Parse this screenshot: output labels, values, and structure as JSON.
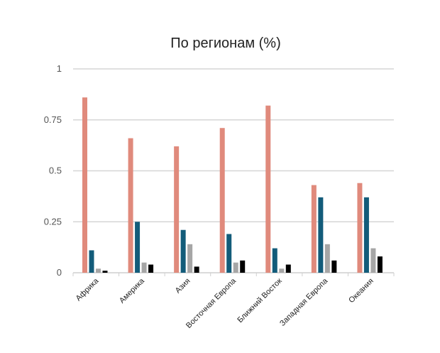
{
  "chart_data": {
    "type": "bar",
    "title": "По регионам (%)",
    "xlabel": "",
    "ylabel": "",
    "ylim": [
      0,
      1
    ],
    "y_ticks": [
      "0",
      "0.25",
      "0.5",
      "0.75",
      "1"
    ],
    "grid": true,
    "legend": "none",
    "categories": [
      "Африка",
      "Америка",
      "Азия",
      "Восточная Европа",
      "Ближний Восток",
      "Западная Европа",
      "Океания"
    ],
    "series": [
      {
        "color": "#e08a7c",
        "values": [
          0.86,
          0.66,
          0.62,
          0.71,
          0.82,
          0.43,
          0.44
        ]
      },
      {
        "color": "#135c7a",
        "values": [
          0.11,
          0.25,
          0.21,
          0.19,
          0.12,
          0.37,
          0.37
        ]
      },
      {
        "color": "#a6a6a6",
        "values": [
          0.02,
          0.05,
          0.14,
          0.05,
          0.02,
          0.14,
          0.12
        ]
      },
      {
        "color": "#000000",
        "values": [
          0.01,
          0.04,
          0.03,
          0.06,
          0.04,
          0.06,
          0.08
        ]
      }
    ]
  }
}
